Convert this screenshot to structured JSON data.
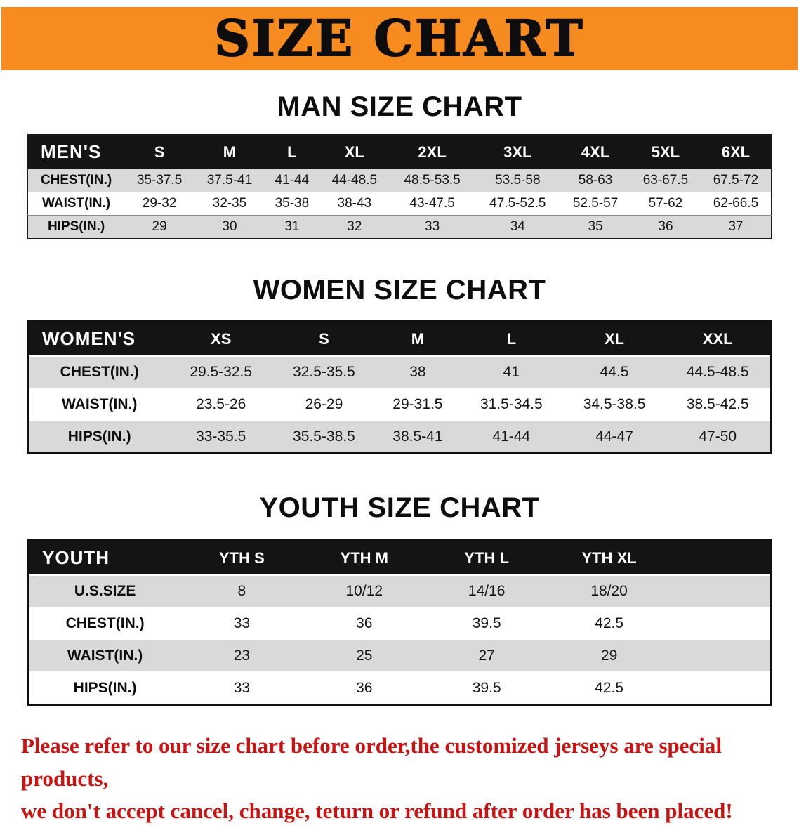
{
  "banner": {
    "title": "SIZE CHART"
  },
  "sections": [
    {
      "heading": "MAN SIZE CHART",
      "table": {
        "header": [
          "MEN'S",
          "S",
          "M",
          "L",
          "XL",
          "2XL",
          "3XL",
          "4XL",
          "5XL",
          "6XL"
        ],
        "rows": [
          {
            "label": "CHEST(IN.)",
            "values": [
              "35-37.5",
              "37.5-41",
              "41-44",
              "44-48.5",
              "48.5-53.5",
              "53.5-58",
              "58-63",
              "63-67.5",
              "67.5-72"
            ]
          },
          {
            "label": "WAIST(IN.)",
            "values": [
              "29-32",
              "32-35",
              "35-38",
              "38-43",
              "43-47.5",
              "47.5-52.5",
              "52.5-57",
              "57-62",
              "62-66.5"
            ]
          },
          {
            "label": "HIPS(IN.)",
            "values": [
              "29",
              "30",
              "31",
              "32",
              "33",
              "34",
              "35",
              "36",
              "37"
            ]
          }
        ]
      }
    },
    {
      "heading": "WOMEN SIZE CHART",
      "table": {
        "header": [
          "WOMEN'S",
          "XS",
          "S",
          "M",
          "L",
          "XL",
          "XXL"
        ],
        "rows": [
          {
            "label": "CHEST(IN.)",
            "values": [
              "29.5-32.5",
              "32.5-35.5",
              "38",
              "41",
              "44.5",
              "44.5-48.5"
            ]
          },
          {
            "label": "WAIST(IN.)",
            "values": [
              "23.5-26",
              "26-29",
              "29-31.5",
              "31.5-34.5",
              "34.5-38.5",
              "38.5-42.5"
            ]
          },
          {
            "label": "HIPS(IN.)",
            "values": [
              "33-35.5",
              "35.5-38.5",
              "38.5-41",
              "41-44",
              "44-47",
              "47-50"
            ]
          }
        ]
      }
    },
    {
      "heading": "YOUTH SIZE CHART",
      "table": {
        "header": [
          "YOUTH",
          "YTH S",
          "YTH M",
          "YTH L",
          "YTH XL"
        ],
        "rows": [
          {
            "label": "U.S.SIZE",
            "values": [
              "8",
              "10/12",
              "14/16",
              "18/20"
            ]
          },
          {
            "label": "CHEST(IN.)",
            "values": [
              "33",
              "36",
              "39.5",
              "42.5"
            ]
          },
          {
            "label": "WAIST(IN.)",
            "values": [
              "23",
              "25",
              "27",
              "29"
            ]
          },
          {
            "label": "HIPS(IN.)",
            "values": [
              "33",
              "36",
              "39.5",
              "42.5"
            ]
          }
        ]
      }
    }
  ],
  "footer": {
    "line1": "Please refer to our size chart before order,the customized jerseys are special products,",
    "line2": "we don't accept cancel, change, teturn or refund after order has been placed!"
  },
  "colors": {
    "banner_orange": "#f68b1f",
    "table_header_black": "#141414",
    "row_stripe_gray": "#d9d9d9",
    "disclaimer_red": "#cc1111"
  }
}
